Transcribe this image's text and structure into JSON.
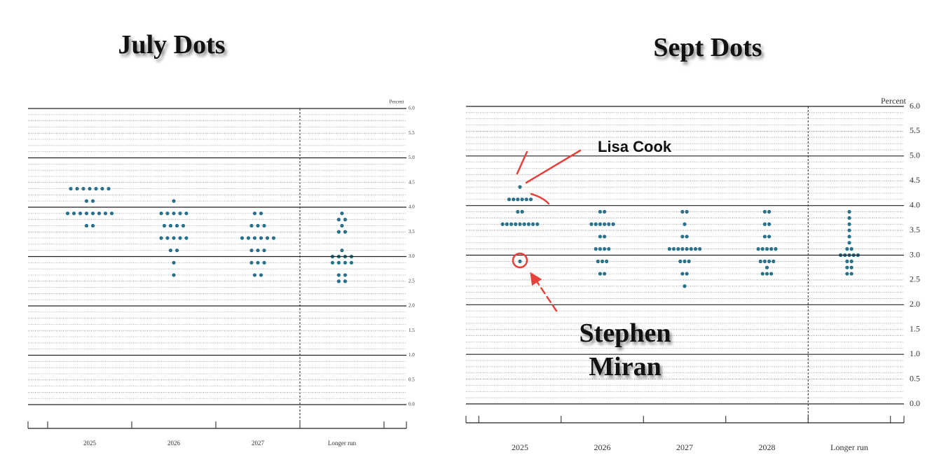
{
  "chart_data": [
    {
      "type": "dot",
      "title": "July Dots",
      "ylabel": "Percent",
      "color": "#1f6f8b",
      "categories": [
        "2025",
        "2026",
        "2027",
        "Longer run"
      ],
      "dots": [
        [
          4.375,
          4.375,
          4.375,
          4.375,
          4.375,
          4.375,
          4.375,
          4.125,
          4.125,
          3.875,
          3.875,
          3.875,
          3.875,
          3.875,
          3.875,
          3.875,
          3.875,
          3.625,
          3.625
        ],
        [
          4.125,
          3.875,
          3.875,
          3.875,
          3.875,
          3.875,
          3.625,
          3.625,
          3.625,
          3.625,
          3.375,
          3.375,
          3.375,
          3.375,
          3.375,
          3.125,
          3.125,
          2.875,
          2.625
        ],
        [
          3.875,
          3.875,
          3.625,
          3.625,
          3.625,
          3.375,
          3.375,
          3.375,
          3.375,
          3.375,
          3.375,
          3.125,
          3.125,
          3.125,
          2.875,
          2.875,
          2.875,
          2.625,
          2.625
        ],
        [
          3.875,
          3.75,
          3.75,
          3.625,
          3.5,
          3.5,
          3.125,
          3.0,
          3.0,
          3.0,
          3.0,
          2.875,
          2.875,
          2.875,
          2.875,
          2.625,
          2.625,
          2.5,
          2.5
        ]
      ],
      "ylim": [
        0,
        6
      ],
      "yticks": [
        {
          "value": 0,
          "label": "0.0"
        },
        0.5,
        {
          "value": 1,
          "label": "1.0"
        },
        1.5,
        {
          "value": 2,
          "label": "2.0"
        },
        2.5,
        {
          "value": 3,
          "label": "3.0"
        },
        3.5,
        {
          "value": 4,
          "label": "4.0"
        },
        4.5,
        {
          "value": 5,
          "label": "5.0"
        },
        5.5,
        {
          "value": 6,
          "label": "6.0"
        }
      ]
    },
    {
      "type": "dot",
      "title": "Sept Dots",
      "ylabel": "Percent",
      "color": "#1f6f8b",
      "categories": [
        "2025",
        "2026",
        "2027",
        "2028",
        "Longer run"
      ],
      "dots": [
        [
          4.375,
          4.125,
          4.125,
          4.125,
          4.125,
          4.125,
          4.125,
          3.875,
          3.875,
          3.625,
          3.625,
          3.625,
          3.625,
          3.625,
          3.625,
          3.625,
          3.625,
          3.625,
          2.875
        ],
        [
          3.875,
          3.875,
          3.625,
          3.625,
          3.625,
          3.625,
          3.625,
          3.625,
          3.375,
          3.375,
          3.125,
          3.125,
          3.125,
          3.125,
          2.875,
          2.875,
          2.875,
          2.625,
          2.625
        ],
        [
          3.875,
          3.875,
          3.625,
          3.375,
          3.375,
          3.125,
          3.125,
          3.125,
          3.125,
          3.125,
          3.125,
          3.125,
          3.125,
          2.875,
          2.875,
          2.875,
          2.625,
          2.625,
          2.375
        ],
        [
          3.875,
          3.875,
          3.625,
          3.625,
          3.375,
          3.375,
          3.125,
          3.125,
          3.125,
          3.125,
          3.125,
          2.875,
          2.875,
          2.875,
          2.875,
          2.75,
          2.625,
          2.625,
          2.625
        ],
        [
          3.875,
          3.75,
          3.625,
          3.5,
          3.375,
          3.25,
          3.125,
          3.125,
          3.0,
          3.0,
          3.0,
          3.0,
          3.0,
          2.875,
          2.875,
          2.75,
          2.75,
          2.625,
          2.625
        ]
      ],
      "ylim": [
        0,
        6
      ],
      "yticks": [
        {
          "value": 0,
          "label": "0.0"
        },
        0.5,
        {
          "value": 1,
          "label": "1.0"
        },
        1.5,
        {
          "value": 2,
          "label": "2.0"
        },
        2.5,
        {
          "value": 3,
          "label": "3.0"
        },
        3.5,
        {
          "value": 4,
          "label": "4.0"
        },
        4.5,
        {
          "value": 5,
          "label": "5.0"
        },
        5.5,
        {
          "value": 6,
          "label": "6.0"
        }
      ],
      "annotations": [
        "Lisa Cook",
        "Stephen Miran"
      ]
    }
  ]
}
